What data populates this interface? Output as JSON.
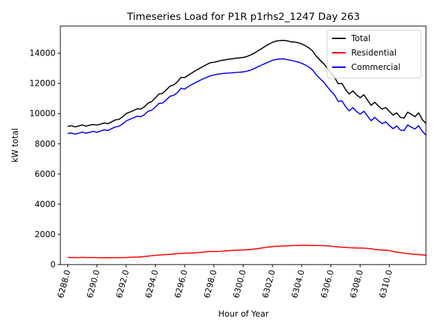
{
  "chart_data": {
    "type": "line",
    "title": "Timeseries Load for P1R p1rhs2_1247  Day 263",
    "xlabel": "Hour of Year",
    "ylabel": "kW total",
    "xlim": [
      6287.5,
      6312.5
    ],
    "ylim": [
      0,
      15800
    ],
    "x_ticks": [
      6288,
      6290,
      6292,
      6294,
      6296,
      6298,
      6300,
      6302,
      6304,
      6306,
      6308,
      6310
    ],
    "x_tick_labels": [
      "6288.0",
      "6290.0",
      "6292.0",
      "6294.0",
      "6296.0",
      "6298.0",
      "6300.0",
      "6302.0",
      "6304.0",
      "6306.0",
      "6308.0",
      "6310.0"
    ],
    "y_ticks": [
      0,
      2000,
      4000,
      6000,
      8000,
      10000,
      12000,
      14000
    ],
    "y_tick_labels": [
      "0",
      "2000",
      "4000",
      "6000",
      "8000",
      "10000",
      "12000",
      "14000"
    ],
    "legend_position": "upper right",
    "x_start": 6288,
    "x_step": 0.25,
    "series": [
      {
        "name": "Total",
        "color": "#000000",
        "values": [
          9150,
          9200,
          9120,
          9180,
          9250,
          9170,
          9230,
          9280,
          9240,
          9300,
          9380,
          9330,
          9450,
          9580,
          9620,
          9780,
          10000,
          10100,
          10200,
          10320,
          10300,
          10450,
          10700,
          10800,
          11050,
          11300,
          11350,
          11580,
          11820,
          11900,
          12100,
          12400,
          12380,
          12550,
          12700,
          12850,
          12980,
          13120,
          13250,
          13370,
          13400,
          13460,
          13520,
          13560,
          13600,
          13630,
          13670,
          13690,
          13720,
          13780,
          13880,
          14000,
          14150,
          14300,
          14450,
          14600,
          14720,
          14800,
          14840,
          14850,
          14820,
          14760,
          14740,
          14700,
          14620,
          14500,
          14350,
          14150,
          13800,
          13550,
          13320,
          13000,
          12700,
          12400,
          11980,
          12000,
          11600,
          11300,
          11500,
          11250,
          11050,
          11250,
          10900,
          10550,
          10750,
          10500,
          10300,
          10400,
          10150,
          9900,
          10050,
          9750,
          9700,
          10100,
          9950,
          9800,
          10050,
          9600,
          9350
        ]
      },
      {
        "name": "Residential",
        "color": "#ff0000",
        "values": [
          480,
          470,
          470,
          460,
          480,
          470,
          465,
          470,
          460,
          455,
          450,
          455,
          450,
          460,
          455,
          460,
          470,
          480,
          490,
          500,
          510,
          540,
          560,
          590,
          610,
          630,
          650,
          660,
          680,
          700,
          720,
          740,
          750,
          760,
          770,
          780,
          800,
          820,
          850,
          870,
          860,
          870,
          880,
          900,
          920,
          940,
          950,
          960,
          970,
          980,
          1000,
          1030,
          1060,
          1100,
          1130,
          1160,
          1190,
          1210,
          1220,
          1230,
          1240,
          1250,
          1260,
          1270,
          1280,
          1280,
          1270,
          1270,
          1260,
          1260,
          1250,
          1240,
          1220,
          1190,
          1170,
          1150,
          1140,
          1120,
          1110,
          1100,
          1100,
          1090,
          1070,
          1050,
          1000,
          980,
          960,
          950,
          930,
          870,
          820,
          790,
          760,
          720,
          700,
          680,
          660,
          640,
          620
        ]
      },
      {
        "name": "Commercial",
        "color": "#0000ff",
        "values": [
          8680,
          8720,
          8640,
          8700,
          8780,
          8700,
          8760,
          8820,
          8760,
          8850,
          8930,
          8880,
          9000,
          9120,
          9160,
          9310,
          9520,
          9620,
          9720,
          9830,
          9800,
          9930,
          10160,
          10230,
          10440,
          10680,
          10700,
          10920,
          11150,
          11210,
          11390,
          11680,
          11620,
          11790,
          11930,
          12060,
          12180,
          12300,
          12400,
          12500,
          12560,
          12610,
          12640,
          12670,
          12690,
          12700,
          12730,
          12740,
          12760,
          12810,
          12880,
          12980,
          13100,
          13210,
          13320,
          13430,
          13530,
          13590,
          13620,
          13630,
          13580,
          13530,
          13480,
          13420,
          13330,
          13220,
          13080,
          12890,
          12560,
          12320,
          12090,
          11780,
          11490,
          11230,
          10810,
          10850,
          10470,
          10180,
          10400,
          10140,
          9960,
          10160,
          9840,
          9530,
          9750,
          9520,
          9340,
          9450,
          9210,
          9000,
          9180,
          8910,
          8880,
          9250,
          9100,
          8980,
          9200,
          8830,
          8580
        ]
      }
    ]
  }
}
